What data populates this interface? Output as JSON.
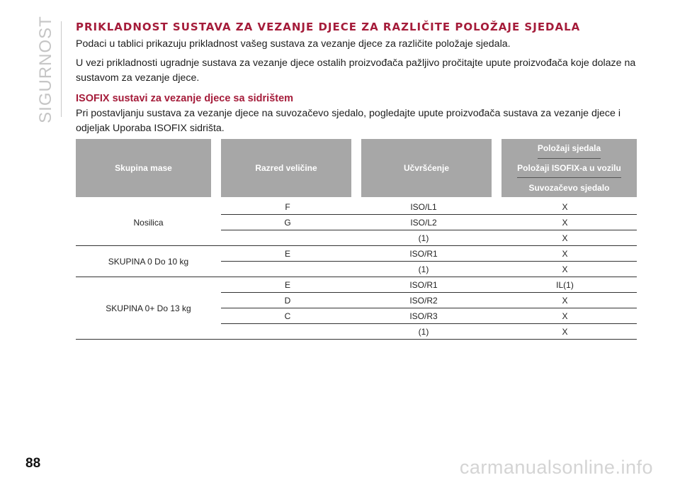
{
  "side_label": "SIGURNOST",
  "title": "PRIKLADNOST SUSTAVA ZA VEZANJE DJECE ZA RAZLIČITE POLOŽAJE SJEDALA",
  "paragraphs": [
    "Podaci u tablici prikazuju prikladnost vašeg sustava za vezanje djece za različite položaje sjedala.",
    "U vezi prikladnosti ugradnje sustava za vezanje djece ostalih proizvođača pažljivo pročitajte upute proizvođača koje dolaze na sustavom za vezanje djece."
  ],
  "subheading": "ISOFIX sustavi za vezanje djece sa sidrištem",
  "subheading_text": "Pri postavljanju sustava za vezanje djece na suvozačevo sjedalo, pogledajte upute proizvođača sustava za vezanje djece i odjeljak Uporaba ISOFIX sidrišta.",
  "table": {
    "headers": {
      "mass_group": "Skupina mase",
      "size_class": "Razred veličine",
      "fixture": "Učvršćenje",
      "seat_positions": "Položaji sjedala",
      "isofix_positions": "Položaji ISOFIX-a u vozilu",
      "passenger_seat": "Suvozačevo sjedalo"
    },
    "groups": [
      {
        "label": "Nosilica",
        "rows": [
          {
            "size": "F",
            "fixture": "ISO/L1",
            "passenger": "X"
          },
          {
            "size": "G",
            "fixture": "ISO/L2",
            "passenger": "X"
          },
          {
            "size": "",
            "fixture": "(1)",
            "passenger": "X"
          }
        ]
      },
      {
        "label": "SKUPINA 0 Do 10 kg",
        "rows": [
          {
            "size": "E",
            "fixture": "ISO/R1",
            "passenger": "X"
          },
          {
            "size": "",
            "fixture": "(1)",
            "passenger": "X"
          }
        ]
      },
      {
        "label": "SKUPINA 0+ Do 13 kg",
        "rows": [
          {
            "size": "E",
            "fixture": "ISO/R1",
            "passenger": "IL(1)"
          },
          {
            "size": "D",
            "fixture": "ISO/R2",
            "passenger": "X"
          },
          {
            "size": "C",
            "fixture": "ISO/R3",
            "passenger": "X"
          },
          {
            "size": "",
            "fixture": "(1)",
            "passenger": "X"
          }
        ]
      }
    ]
  },
  "page_number": "88",
  "watermark": "carmanualsonline.info",
  "colors": {
    "accent": "#a51c3a",
    "header_bg": "#a7a7a7",
    "side_label": "#c5c5c5"
  }
}
